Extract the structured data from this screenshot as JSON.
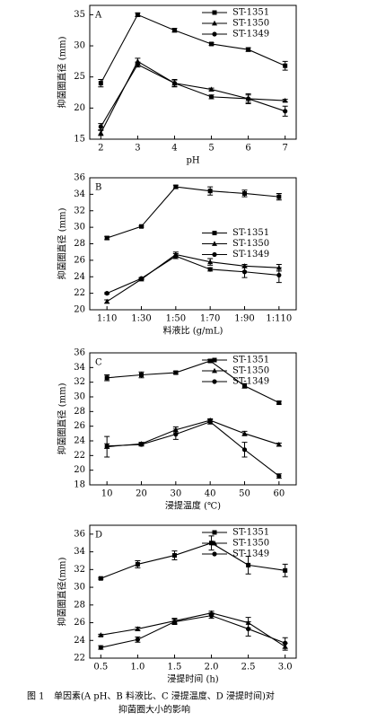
{
  "chart_data": [
    {
      "type": "line",
      "panel": "A",
      "x_label": "pH",
      "y_label": "抑菌圈直径 (mm)",
      "x": [
        2,
        3,
        4,
        5,
        6,
        7
      ],
      "xlim": [
        1.7,
        7.3
      ],
      "xticks": [
        2,
        3,
        4,
        5,
        6,
        7
      ],
      "ylim": [
        15,
        36.5
      ],
      "yticks": [
        15,
        20,
        25,
        30,
        35
      ],
      "legend": "upper right",
      "series": [
        {
          "name": "ST-1351",
          "color": "#000000",
          "marker": "square",
          "values": [
            24,
            35,
            32.5,
            30.3,
            29.4,
            26.8
          ],
          "errors": [
            0.6,
            0.3,
            0.3,
            0.2,
            0.3,
            0.7
          ]
        },
        {
          "name": "ST-1350",
          "color": "#000000",
          "marker": "triangle",
          "values": [
            16,
            27.5,
            24,
            23,
            21.5,
            21.2
          ],
          "errors": [
            0.4,
            0.5,
            0.5,
            0.2,
            0.8,
            0.2
          ]
        },
        {
          "name": "ST-1349",
          "color": "#000000",
          "marker": "circle",
          "values": [
            17,
            27,
            24,
            21.8,
            21.5,
            19.5
          ],
          "errors": [
            0.5,
            0.4,
            0.6,
            0.3,
            0.6,
            0.8
          ]
        }
      ]
    },
    {
      "type": "line",
      "panel": "B",
      "x_label": "料液比 (g/mL)",
      "y_label": "抑菌圈直径 (mm)",
      "categories": [
        "1:10",
        "1:30",
        "1:50",
        "1:70",
        "1:90",
        "1:110"
      ],
      "ylim": [
        20,
        36
      ],
      "yticks": [
        20,
        22,
        24,
        26,
        28,
        30,
        32,
        34,
        36
      ],
      "legend": "center right",
      "series": [
        {
          "name": "ST-1351",
          "color": "#000000",
          "marker": "square",
          "values": [
            28.7,
            30.1,
            34.9,
            34.4,
            34.1,
            33.7
          ],
          "errors": [
            0.2,
            0.1,
            0.2,
            0.5,
            0.4,
            0.4
          ]
        },
        {
          "name": "ST-1350",
          "color": "#000000",
          "marker": "triangle",
          "values": [
            21,
            23.7,
            26.7,
            25.8,
            25.3,
            25.1
          ],
          "errors": [
            0.2,
            0.1,
            0.3,
            0.4,
            0.2,
            0.4
          ]
        },
        {
          "name": "ST-1349",
          "color": "#000000",
          "marker": "circle",
          "values": [
            22,
            23.8,
            26.5,
            24.9,
            24.6,
            24.2
          ],
          "errors": [
            0.1,
            0.1,
            0.3,
            0.2,
            0.7,
            0.9
          ]
        }
      ]
    },
    {
      "type": "line",
      "panel": "C",
      "x_label": "浸提温度 (℃)",
      "y_label": "抑菌圈直径 (mm)",
      "x": [
        10,
        20,
        30,
        40,
        50,
        60
      ],
      "xlim": [
        5,
        65
      ],
      "xticks": [
        10,
        20,
        30,
        40,
        50,
        60
      ],
      "ylim": [
        18,
        36
      ],
      "yticks": [
        18,
        20,
        22,
        24,
        26,
        28,
        30,
        32,
        34,
        36
      ],
      "legend": "upper right",
      "series": [
        {
          "name": "ST-1351",
          "color": "#000000",
          "marker": "square",
          "values": [
            32.6,
            33,
            33.3,
            34.9,
            31.5,
            29.2
          ],
          "errors": [
            0.4,
            0.4,
            0.2,
            0.2,
            0.3,
            0.2
          ]
        },
        {
          "name": "ST-1350",
          "color": "#000000",
          "marker": "triangle",
          "values": [
            23.2,
            23.6,
            25.5,
            26.8,
            25,
            23.5
          ],
          "errors": [
            1.4,
            0.2,
            0.4,
            0.2,
            0.3,
            0.2
          ]
        },
        {
          "name": "ST-1349",
          "color": "#000000",
          "marker": "circle",
          "values": [
            23.3,
            23.5,
            24.9,
            26.6,
            22.8,
            19.2
          ],
          "errors": [
            0.3,
            0.2,
            0.7,
            0.3,
            1.0,
            0.3
          ]
        }
      ]
    },
    {
      "type": "line",
      "panel": "D",
      "x_label": "浸提时间 (h)",
      "y_label": "抑菌圈直径(mm)",
      "x": [
        0.5,
        1,
        1.5,
        2,
        2.5,
        3
      ],
      "xlim": [
        0.35,
        3.15
      ],
      "xticks": [
        0.5,
        {
          "value": 1,
          "label": "1.0"
        },
        1.5,
        {
          "value": 2,
          "label": "2.0"
        },
        2.5,
        {
          "value": 3,
          "label": "3.0"
        }
      ],
      "ylim": [
        22,
        37
      ],
      "yticks": [
        22,
        24,
        26,
        28,
        30,
        32,
        34,
        36
      ],
      "legend": "upper right",
      "series": [
        {
          "name": "ST-1351",
          "color": "#000000",
          "marker": "square",
          "values": [
            31,
            32.6,
            33.6,
            35,
            32.5,
            31.9
          ],
          "errors": [
            0.1,
            0.4,
            0.5,
            0.8,
            1.0,
            0.7
          ]
        },
        {
          "name": "ST-1350",
          "color": "#000000",
          "marker": "triangle",
          "values": [
            24.6,
            25.3,
            26.2,
            27.1,
            26,
            23.3
          ],
          "errors": [
            0.1,
            0.2,
            0.3,
            0.2,
            0.6,
            0.4
          ]
        },
        {
          "name": "ST-1349",
          "color": "#000000",
          "marker": "circle",
          "values": [
            23.2,
            24.1,
            26.1,
            26.8,
            25.3,
            23.7
          ],
          "errors": [
            0.2,
            0.3,
            0.3,
            0.3,
            0.8,
            0.6
          ]
        }
      ]
    }
  ],
  "caption": {
    "label": "图 1",
    "line1": "单因素(A pH、B 料液比、C 浸提温度、D 浸提时间)对",
    "line2": "抑菌圈大小的影响"
  }
}
